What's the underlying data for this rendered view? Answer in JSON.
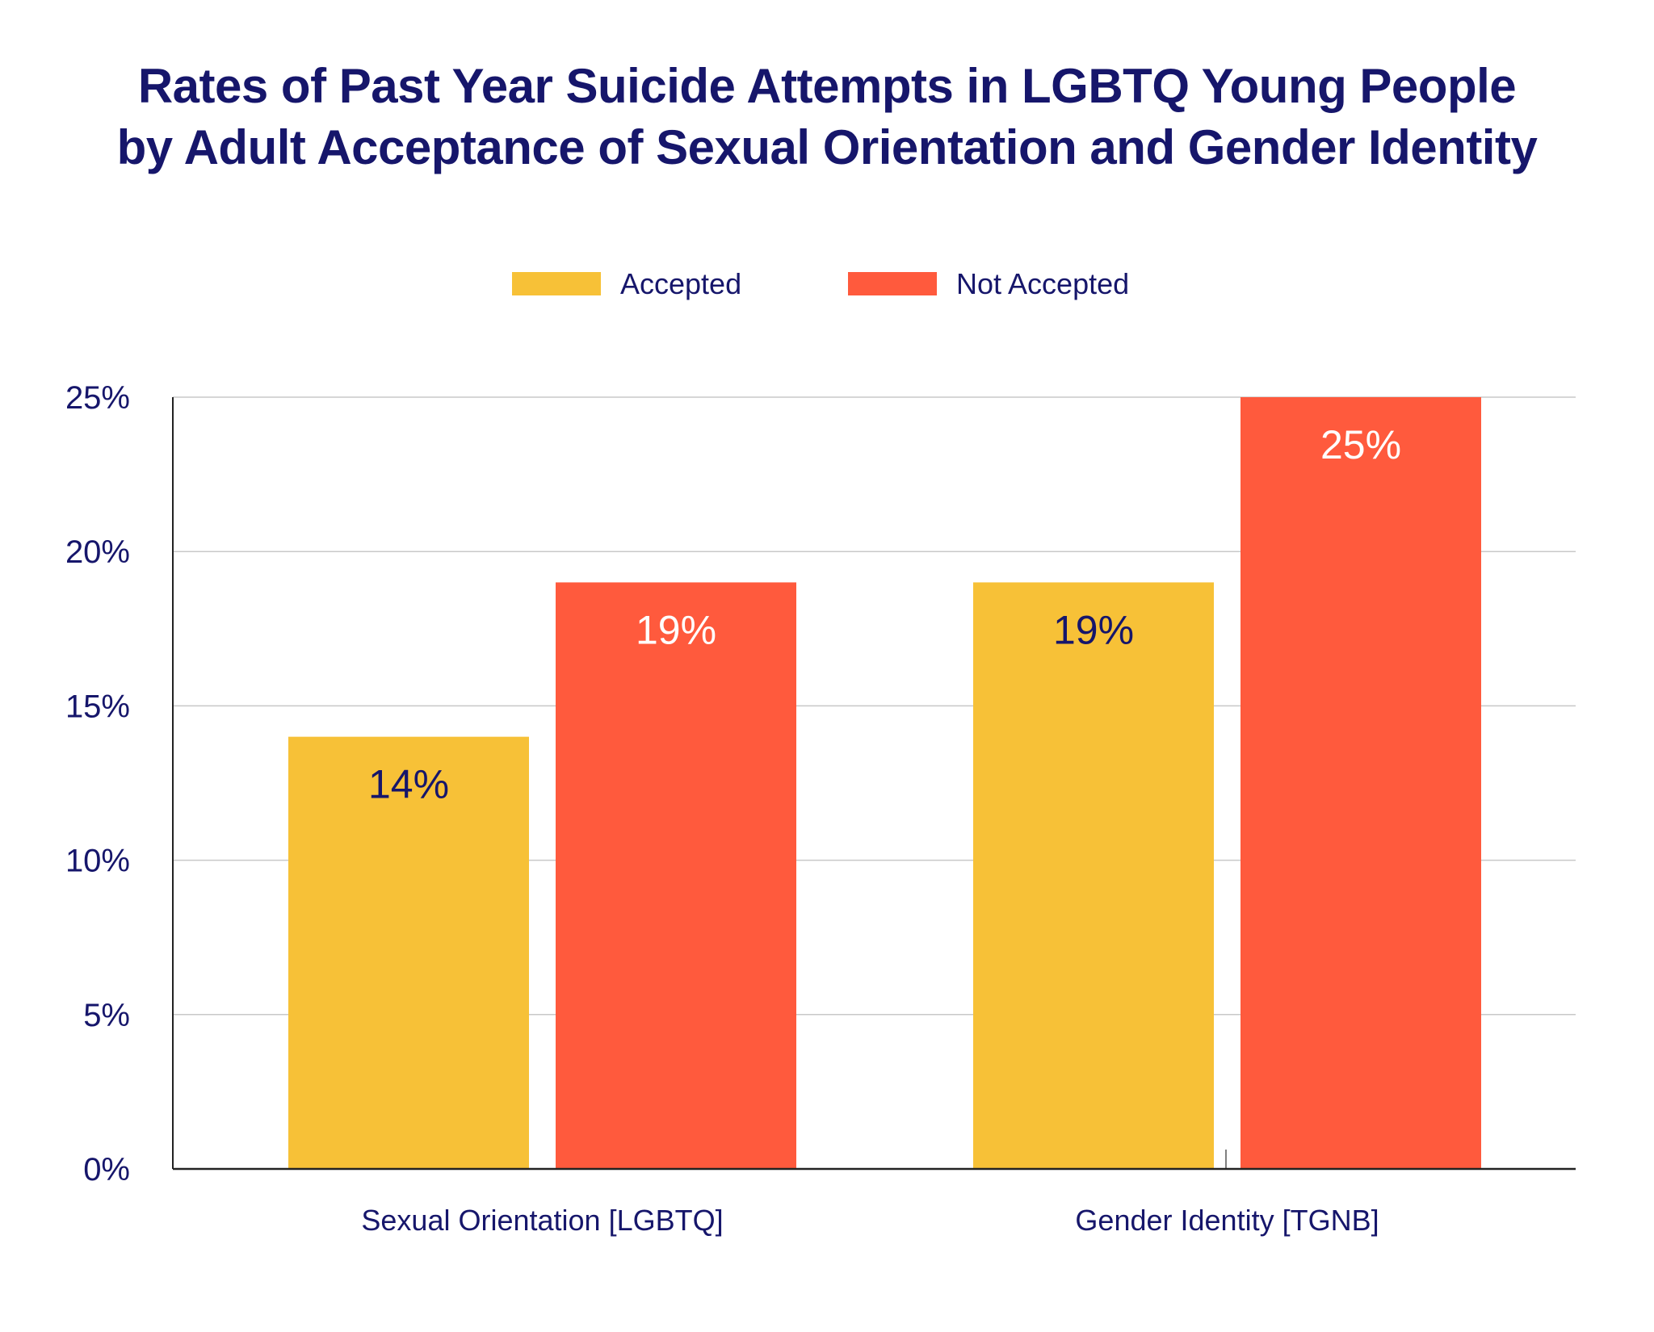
{
  "title_lines": [
    "Rates of Past Year Suicide Attempts in LGBTQ Young People",
    "by Adult Acceptance of Sexual Orientation and Gender Identity"
  ],
  "colors": {
    "accepted": "#F7C137",
    "not_accepted": "#FF5A3D",
    "text": "#16166b",
    "grid": "#c8c8c8",
    "axis": "#222222"
  },
  "chart_data": {
    "type": "bar",
    "title": "Rates of Past Year Suicide Attempts in LGBTQ Young People by Adult Acceptance of Sexual Orientation and Gender Identity",
    "categories": [
      "Sexual Orientation [LGBTQ]",
      "Gender Identity [TGNB]"
    ],
    "series": [
      {
        "name": "Accepted",
        "values": [
          14,
          19
        ],
        "labels": [
          "14%",
          "19%"
        ],
        "color": "#F7C137",
        "label_color": "#16166b"
      },
      {
        "name": "Not Accepted",
        "values": [
          19,
          25
        ],
        "labels": [
          "19%",
          "25%"
        ],
        "color": "#FF5A3D",
        "label_color": "#ffffff"
      }
    ],
    "ylim": [
      0,
      25
    ],
    "yticks": [
      0,
      5,
      10,
      15,
      20,
      25
    ],
    "ytick_labels": [
      "0%",
      "5%",
      "10%",
      "15%",
      "20%",
      "25%"
    ],
    "xlabel": "",
    "ylabel": "",
    "grid": true,
    "legend_position": "top-center"
  }
}
